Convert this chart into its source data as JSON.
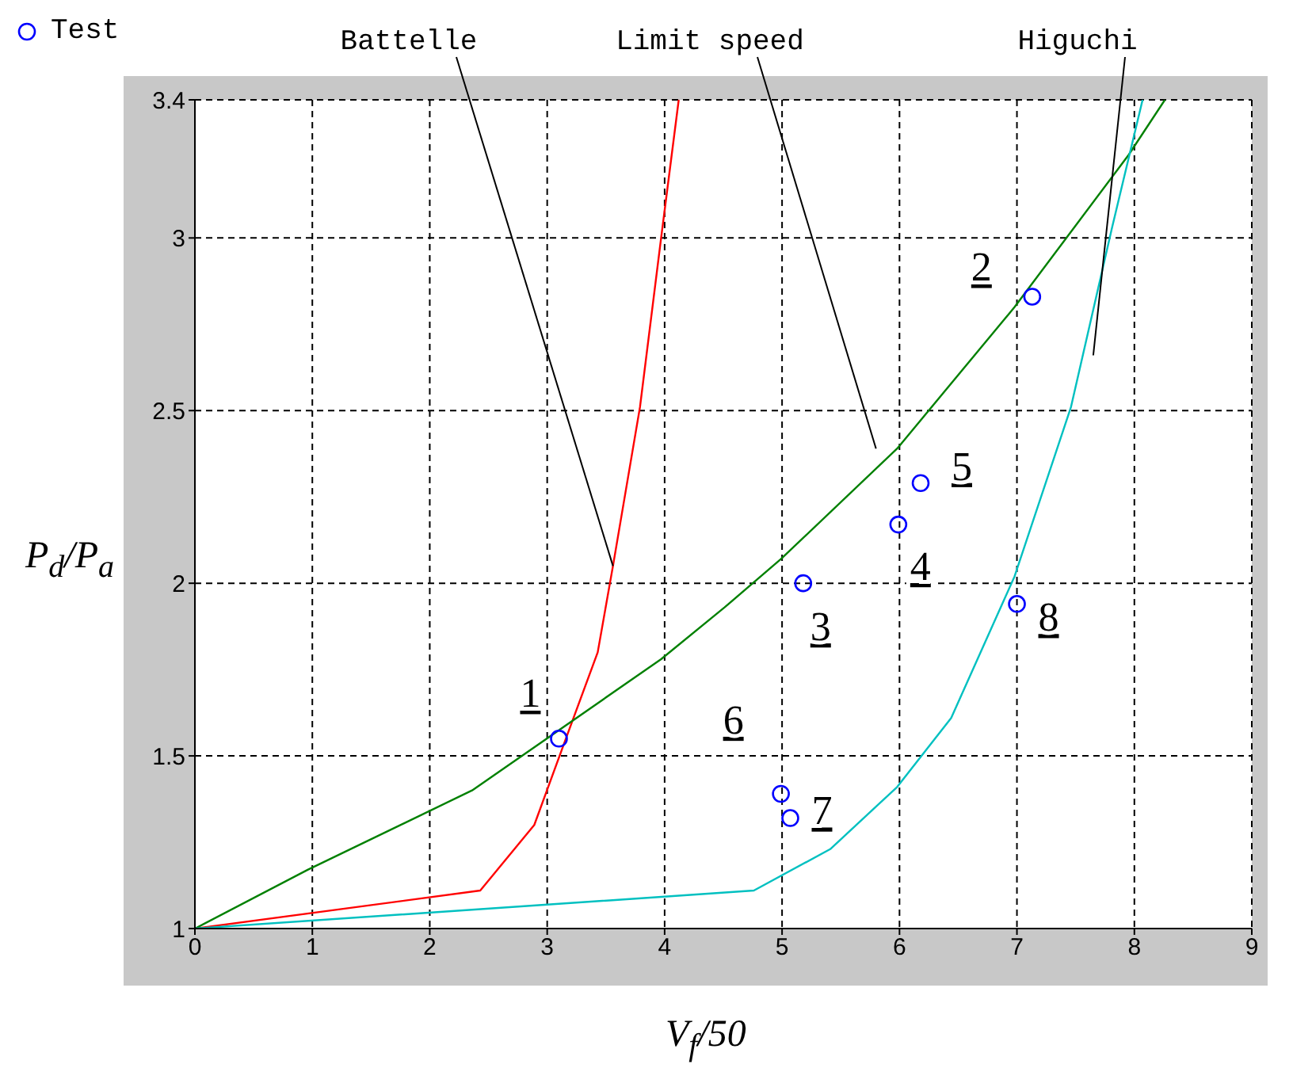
{
  "chart_data": {
    "type": "line",
    "xlabel": "V$_{f}$/50",
    "ylabel": "P$_{d}$/P$_{a}$",
    "xlim": [
      0,
      9
    ],
    "xticks": [
      0,
      1,
      2,
      3,
      4,
      5,
      6,
      7,
      8,
      9
    ],
    "ylim": [
      1,
      3.4
    ],
    "yticks": [
      1,
      1.5,
      2,
      2.5,
      3,
      3.4
    ],
    "grid": true,
    "legend": "top left",
    "series": [
      {
        "name": "Test",
        "type": "scatter",
        "marker": "circle",
        "color": "#0000ff",
        "x": [
          3.1,
          7.13,
          5.18,
          5.99,
          6.18,
          4.99,
          5.07,
          7.0
        ],
        "values": [
          1.55,
          2.83,
          2.0,
          2.17,
          2.29,
          1.39,
          1.32,
          1.94
        ]
      },
      {
        "name": "Battelle",
        "color": "#ff0000",
        "x": [
          0,
          2.43,
          2.89,
          3.17,
          3.43,
          3.56,
          3.79,
          3.97,
          4.12
        ],
        "values": [
          1,
          1.11,
          1.3,
          1.56,
          1.8,
          2.05,
          2.51,
          3.0,
          3.4
        ]
      },
      {
        "name": "Limit speed",
        "color": "#008000",
        "x": [
          0,
          0.96,
          2.36,
          3.97,
          4.51,
          4.99,
          5.98,
          6.98,
          7.95,
          8.26
        ],
        "values": [
          1,
          1.17,
          1.4,
          1.78,
          1.93,
          2.07,
          2.39,
          2.8,
          3.24,
          3.4
        ]
      },
      {
        "name": "Higuchi",
        "color": "#00c0c0",
        "x": [
          0,
          4.76,
          5.41,
          5.98,
          6.44,
          6.98,
          7.46,
          7.81,
          8.07
        ],
        "values": [
          1,
          1.11,
          1.23,
          1.41,
          1.61,
          2.02,
          2.51,
          3.03,
          3.4
        ]
      }
    ],
    "annotations": [
      {
        "text": "1",
        "x": 3.1,
        "y": 1.55
      },
      {
        "text": "2",
        "x": 7.13,
        "y": 2.83
      },
      {
        "text": "3",
        "x": 5.18,
        "y": 2.0
      },
      {
        "text": "4",
        "x": 5.99,
        "y": 2.17
      },
      {
        "text": "5",
        "x": 6.18,
        "y": 2.29
      },
      {
        "text": "6",
        "x": 4.99,
        "y": 1.39
      },
      {
        "text": "7",
        "x": 5.07,
        "y": 1.32
      },
      {
        "text": "8",
        "x": 7.0,
        "y": 1.94
      }
    ]
  }
}
